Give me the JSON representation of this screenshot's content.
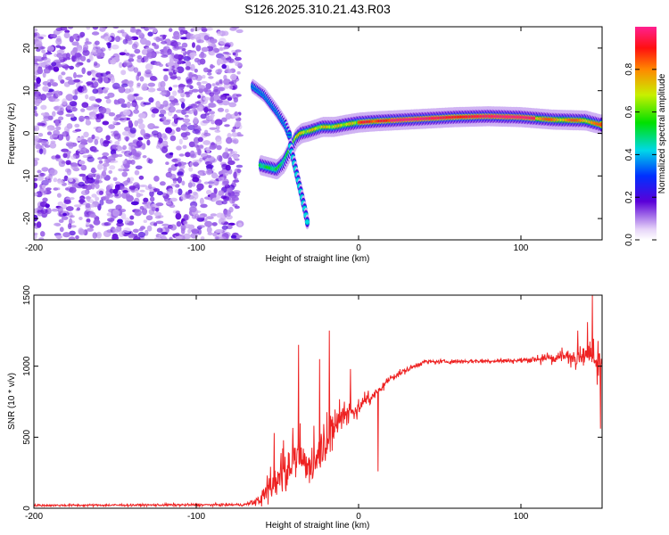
{
  "title": "S126.2025.310.21.43.R03",
  "chart_data": [
    {
      "type": "heatmap",
      "name": "spectrogram",
      "xlabel": "Height of straight line (km)",
      "ylabel": "Frequency (Hz)",
      "xlim": [
        -200,
        150
      ],
      "ylim": [
        -25,
        25
      ],
      "xticks": [
        -200,
        -100,
        0,
        100
      ],
      "yticks": [
        -20,
        -10,
        0,
        10,
        20
      ],
      "noise_region_x": [
        -200,
        -73
      ],
      "ridge": [
        {
          "x": -60,
          "y": -7.5
        },
        {
          "x": -55,
          "y": -8.0
        },
        {
          "x": -50,
          "y": -8.5
        },
        {
          "x": -46,
          "y": -7.0
        },
        {
          "x": -42,
          "y": -4.0
        },
        {
          "x": -38,
          "y": -1.0
        },
        {
          "x": -35,
          "y": 0.0
        },
        {
          "x": -30,
          "y": 0.5
        },
        {
          "x": -22,
          "y": 1.5
        },
        {
          "x": -15,
          "y": 1.5
        },
        {
          "x": -8,
          "y": 2.0
        },
        {
          "x": 0,
          "y": 2.5
        },
        {
          "x": 10,
          "y": 2.8
        },
        {
          "x": 30,
          "y": 3.2
        },
        {
          "x": 60,
          "y": 3.8
        },
        {
          "x": 80,
          "y": 4.0
        },
        {
          "x": 100,
          "y": 3.8
        },
        {
          "x": 120,
          "y": 3.2
        },
        {
          "x": 140,
          "y": 3.0
        },
        {
          "x": 150,
          "y": 2.0
        }
      ],
      "branch_upper": [
        {
          "x": -65,
          "y": 11
        },
        {
          "x": -58,
          "y": 9
        },
        {
          "x": -50,
          "y": 5
        },
        {
          "x": -45,
          "y": 2
        },
        {
          "x": -42,
          "y": -1
        }
      ],
      "branch_lower": [
        {
          "x": -42,
          "y": -3
        },
        {
          "x": -39,
          "y": -8
        },
        {
          "x": -36,
          "y": -13
        },
        {
          "x": -33,
          "y": -18
        },
        {
          "x": -31,
          "y": -22
        }
      ],
      "colorbar": {
        "label": "Normalized spectral amplitude",
        "range": [
          0.0,
          1.0
        ],
        "ticks": [
          0.0,
          0.2,
          0.4,
          0.6,
          0.8
        ],
        "tick_labels": [
          "0.0",
          "0.2",
          "0.4",
          "0.6",
          "0.8"
        ]
      }
    },
    {
      "type": "line",
      "name": "snr",
      "xlabel": "Height of straight line (km)",
      "ylabel": "SNR (10 * v/v)",
      "xlim": [
        -200,
        150
      ],
      "ylim": [
        0,
        1500
      ],
      "xticks": [
        -200,
        -100,
        0,
        100
      ],
      "yticks": [
        0,
        500,
        1000,
        1500
      ],
      "color": "#ee2222",
      "envelope": [
        {
          "x": -200,
          "base": 20,
          "noise": 12
        },
        {
          "x": -70,
          "base": 25,
          "noise": 15
        },
        {
          "x": -60,
          "base": 60,
          "noise": 60
        },
        {
          "x": -50,
          "base": 200,
          "noise": 170
        },
        {
          "x": -40,
          "base": 330,
          "noise": 220
        },
        {
          "x": -30,
          "base": 300,
          "noise": 220
        },
        {
          "x": -20,
          "base": 480,
          "noise": 200
        },
        {
          "x": -10,
          "base": 660,
          "noise": 130
        },
        {
          "x": 0,
          "base": 700,
          "noise": 80
        },
        {
          "x": 10,
          "base": 800,
          "noise": 60
        },
        {
          "x": 20,
          "base": 920,
          "noise": 40
        },
        {
          "x": 40,
          "base": 1030,
          "noise": 25
        },
        {
          "x": 100,
          "base": 1040,
          "noise": 25
        },
        {
          "x": 120,
          "base": 1060,
          "noise": 50
        },
        {
          "x": 140,
          "base": 1080,
          "noise": 90
        },
        {
          "x": 150,
          "base": 1050,
          "noise": 150
        }
      ],
      "spikes": [
        {
          "x": -37,
          "y": 1150
        },
        {
          "x": -18,
          "y": 1250
        },
        {
          "x": -24,
          "y": 1050
        },
        {
          "x": -52,
          "y": 530
        },
        {
          "x": -5,
          "y": 980
        },
        {
          "x": 12,
          "y": 260
        },
        {
          "x": 144,
          "y": 1500
        },
        {
          "x": 141,
          "y": 1310
        },
        {
          "x": 149,
          "y": 560
        },
        {
          "x": 135,
          "y": 1250
        }
      ]
    }
  ]
}
